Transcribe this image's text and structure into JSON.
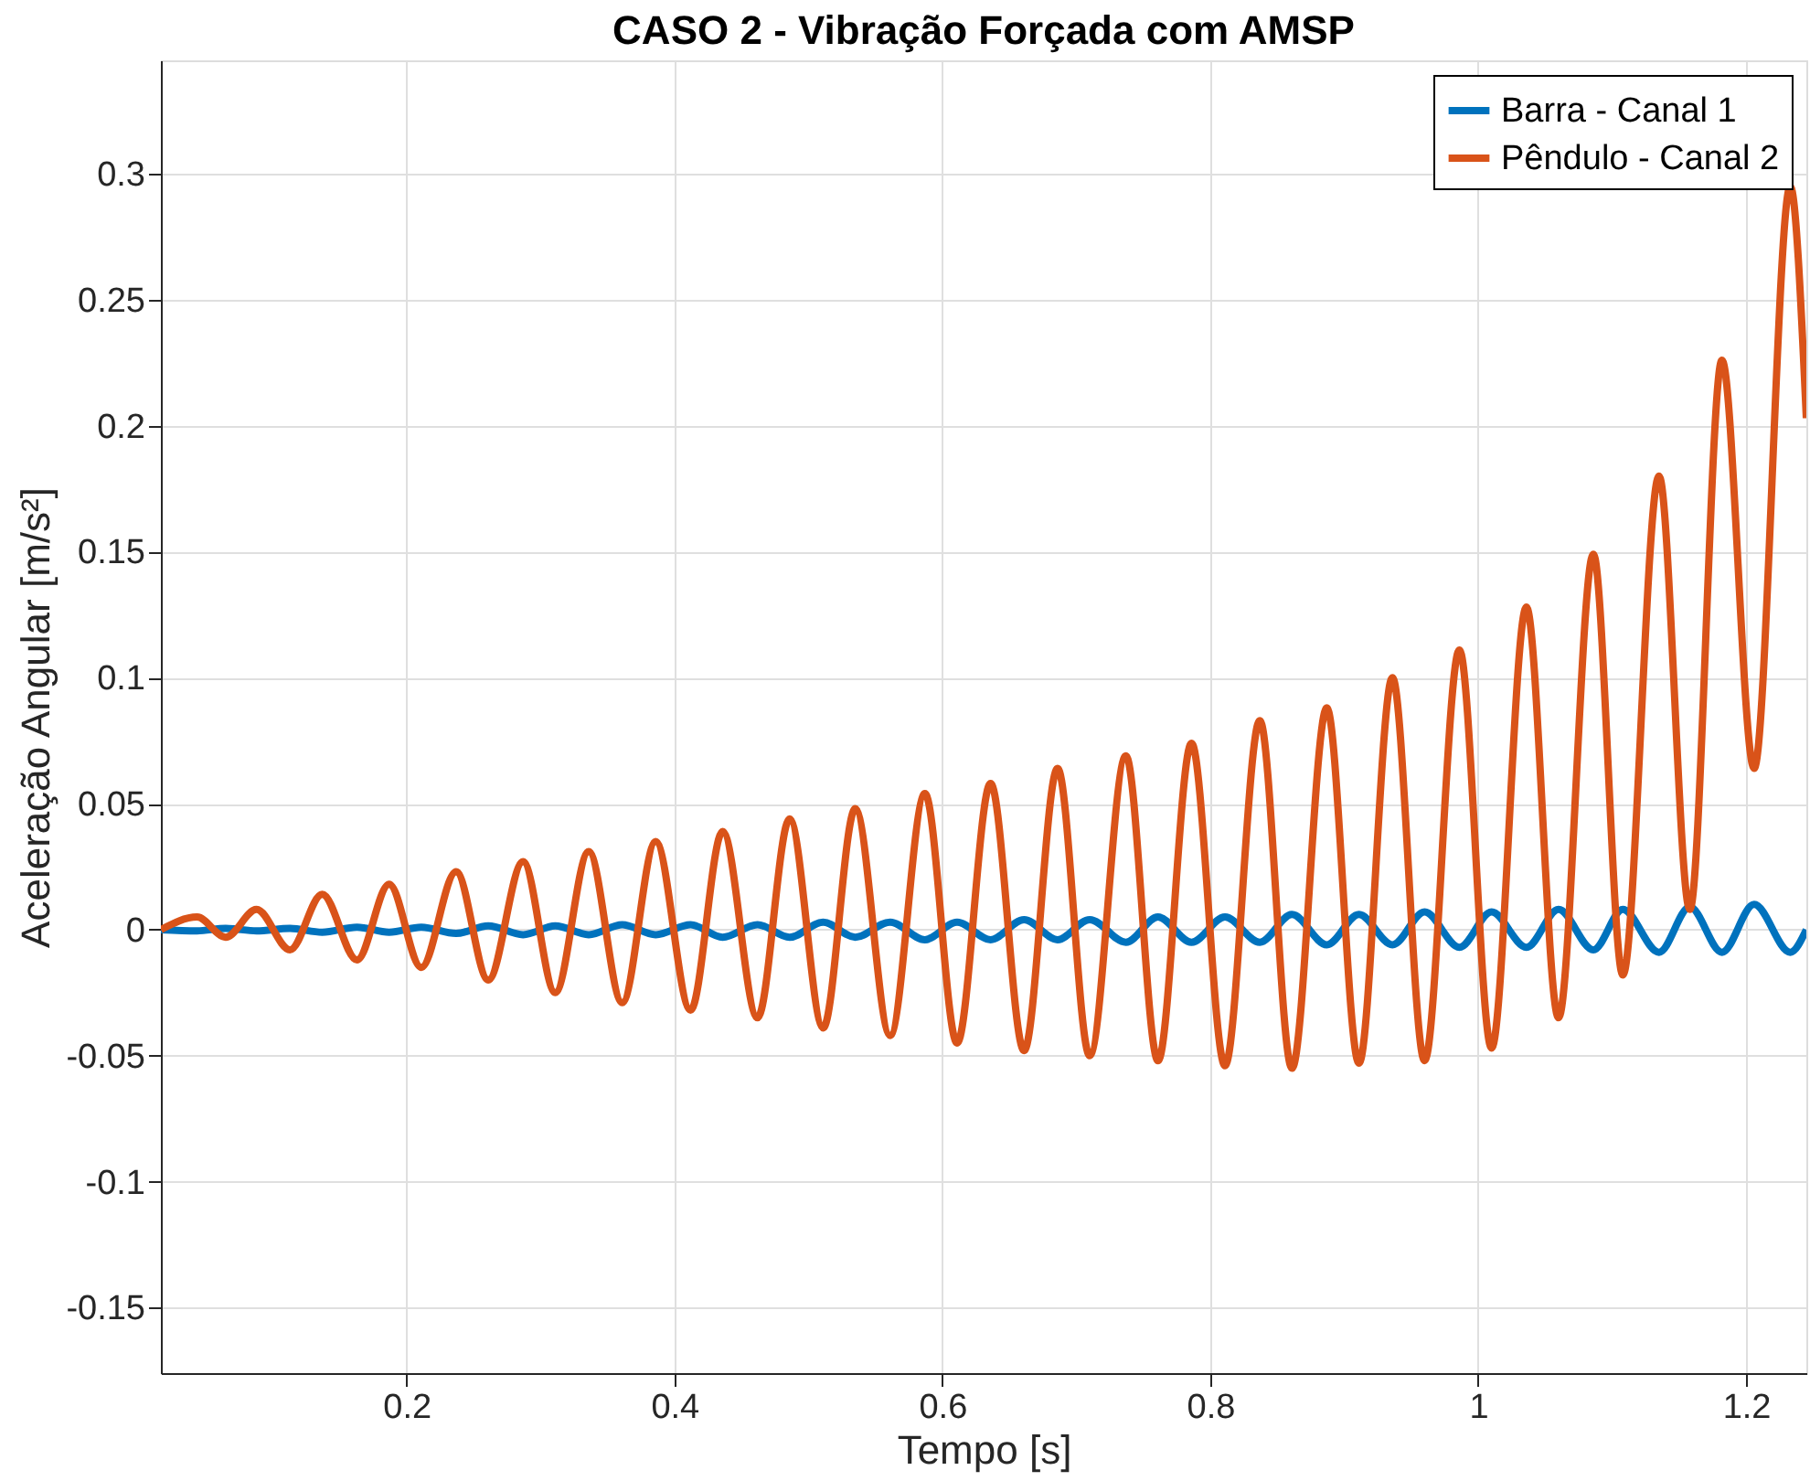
{
  "chart_data": {
    "type": "line",
    "title": "CASO 2 - Vibração Forçada com AMSP",
    "xlabel": "Tempo [s]",
    "ylabel": "Aceleração Angular [m/s²]",
    "xlim": [
      0.0166,
      1.245
    ],
    "ylim": [
      -0.176,
      0.345
    ],
    "xticks": [
      0.2,
      0.4,
      0.6,
      0.8,
      1,
      1.2
    ],
    "yticks": [
      -0.15,
      -0.1,
      -0.05,
      0,
      0.05,
      0.1,
      0.15,
      0.2,
      0.25,
      0.3
    ],
    "grid": true,
    "legend": "top right",
    "line_style": "solid",
    "marker": "none",
    "x": [
      0.0166,
      0.0436,
      0.065,
      0.088,
      0.113,
      0.137,
      0.163,
      0.187,
      0.211,
      0.237,
      0.261,
      0.287,
      0.311,
      0.336,
      0.361,
      0.386,
      0.412,
      0.436,
      0.462,
      0.486,
      0.511,
      0.535,
      0.561,
      0.587,
      0.611,
      0.636,
      0.661,
      0.686,
      0.71,
      0.737,
      0.761,
      0.786,
      0.811,
      0.837,
      0.861,
      0.887,
      0.911,
      0.936,
      0.96,
      0.986,
      1.01,
      1.036,
      1.06,
      1.086,
      1.108,
      1.135,
      1.158,
      1.182,
      1.206,
      1.233,
      1.245
    ],
    "series": [
      {
        "name": "Barra - Canal 1",
        "color": "#0072bd",
        "values": [
          0,
          -0.0005,
          0.0005,
          -0.0005,
          0.0005,
          -0.001,
          0.001,
          -0.001,
          0.001,
          -0.0015,
          0.0015,
          -0.002,
          0.0015,
          -0.002,
          0.002,
          -0.002,
          0.002,
          -0.003,
          0.002,
          -0.003,
          0.003,
          -0.003,
          0.003,
          -0.004,
          0.003,
          -0.004,
          0.004,
          -0.004,
          0.004,
          -0.005,
          0.005,
          -0.005,
          0.005,
          -0.005,
          0.006,
          -0.006,
          0.006,
          -0.006,
          0.007,
          -0.007,
          0.007,
          -0.007,
          0.008,
          -0.008,
          0.008,
          -0.009,
          0.009,
          -0.009,
          0.01,
          -0.009,
          0
        ]
      },
      {
        "name": "Pêndulo - Canal 2",
        "color": "#d95319",
        "values": [
          0,
          0.005,
          -0.003,
          0.008,
          -0.008,
          0.014,
          -0.012,
          0.018,
          -0.015,
          0.023,
          -0.02,
          0.027,
          -0.025,
          0.031,
          -0.029,
          0.035,
          -0.032,
          0.039,
          -0.035,
          0.044,
          -0.039,
          0.048,
          -0.042,
          0.054,
          -0.045,
          0.058,
          -0.048,
          0.064,
          -0.05,
          0.069,
          -0.052,
          0.074,
          -0.054,
          0.083,
          -0.055,
          0.088,
          -0.053,
          0.1,
          -0.052,
          0.111,
          -0.047,
          0.128,
          -0.035,
          0.149,
          -0.018,
          0.18,
          0.008,
          0.226,
          0.064,
          0.295,
          0.203
        ]
      }
    ]
  }
}
